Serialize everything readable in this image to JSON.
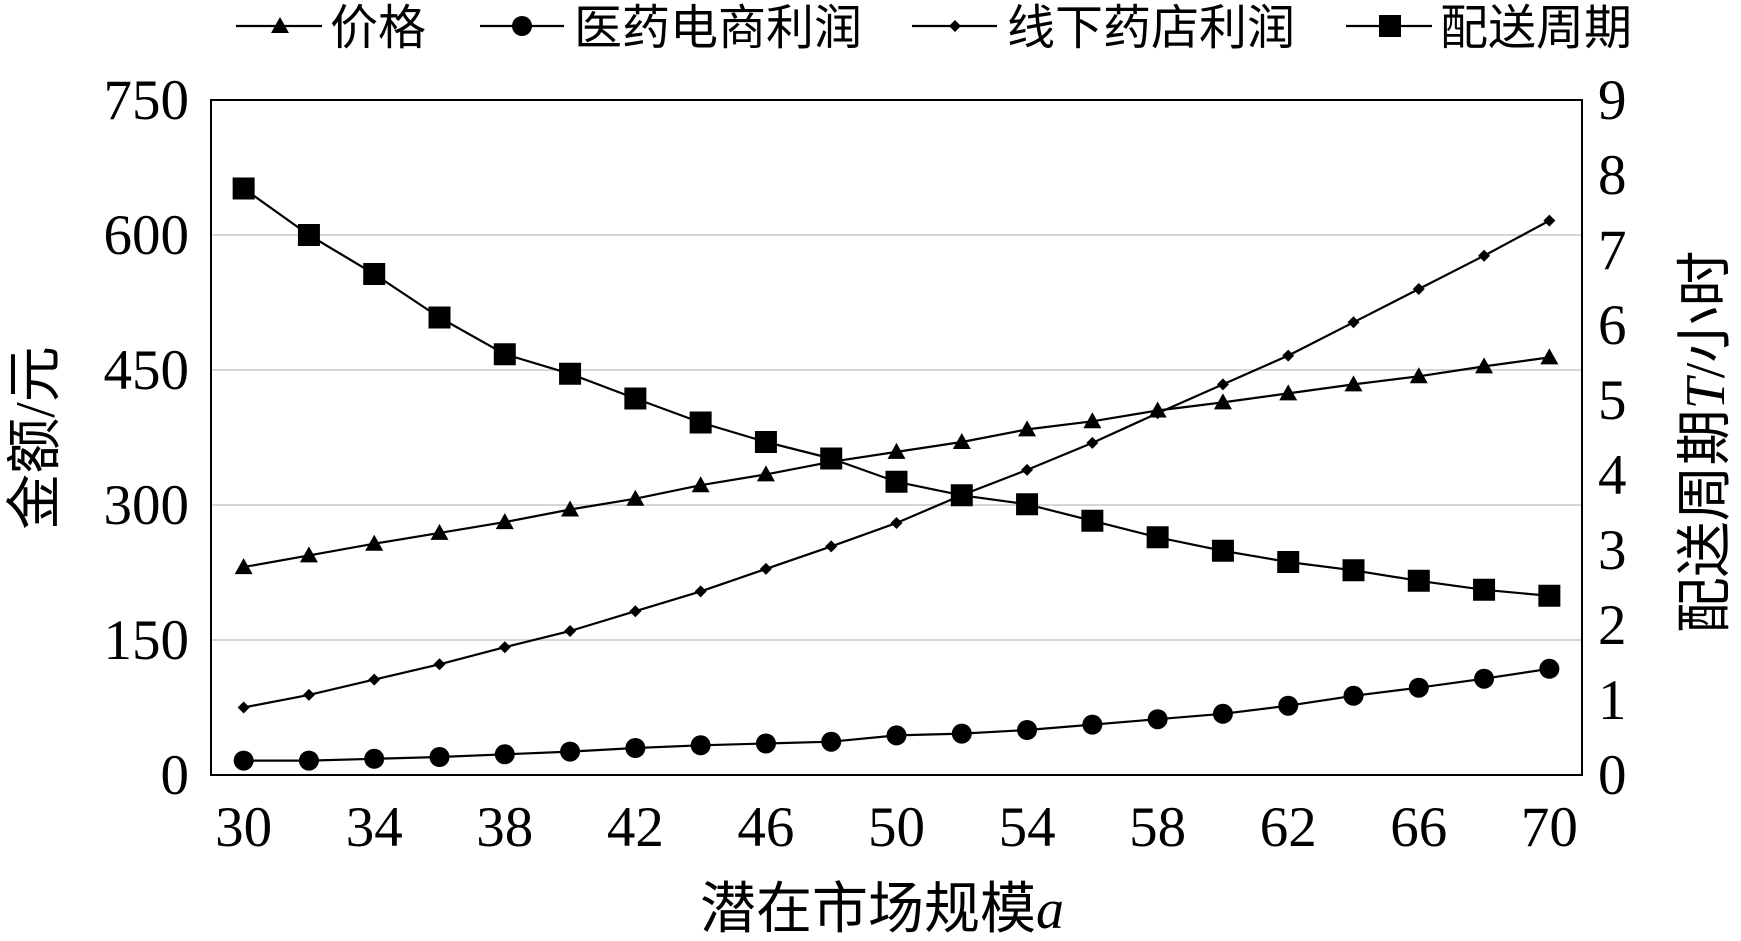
{
  "chart_data": {
    "type": "line",
    "xlabel": "潜在市场规模a",
    "ylabel": "金额/元",
    "y2label": "配送周期T/小时",
    "x": [
      30,
      32,
      34,
      36,
      38,
      40,
      42,
      44,
      46,
      48,
      50,
      52,
      54,
      56,
      58,
      60,
      62,
      64,
      66,
      68,
      70
    ],
    "xlim": [
      29,
      71
    ],
    "xticks": [
      30,
      34,
      38,
      42,
      46,
      50,
      54,
      58,
      62,
      66,
      70
    ],
    "ylim": [
      0,
      750
    ],
    "yticks": [
      0,
      150,
      300,
      450,
      600,
      750
    ],
    "y2lim": [
      0,
      9
    ],
    "y2ticks": [
      0,
      1,
      2,
      3,
      4,
      5,
      6,
      7,
      8,
      9
    ],
    "grid": "horizontal",
    "legend": "top",
    "series": [
      {
        "name": "价格",
        "axis": "left",
        "marker": "triangle",
        "values": [
          231,
          244,
          257,
          269,
          281,
          295,
          307,
          322,
          334,
          348,
          359,
          370,
          384,
          393,
          405,
          414,
          424,
          434,
          443,
          454,
          464
        ]
      },
      {
        "name": "医药电商利润",
        "axis": "left",
        "marker": "circle",
        "values": [
          16,
          16,
          18,
          20,
          23,
          26,
          30,
          33,
          35,
          37,
          44,
          46,
          50,
          56,
          62,
          68,
          77,
          88,
          97,
          107,
          118
        ]
      },
      {
        "name": "线下药店利润",
        "axis": "left",
        "marker": "diamond",
        "values": [
          75,
          89,
          106,
          123,
          142,
          160,
          182,
          204,
          229,
          254,
          280,
          311,
          339,
          369,
          402,
          434,
          466,
          503,
          540,
          577,
          616
        ]
      },
      {
        "name": "配送周期",
        "axis": "right",
        "marker": "square",
        "values": [
          7.82,
          7.2,
          6.68,
          6.1,
          5.61,
          5.35,
          5.02,
          4.7,
          4.44,
          4.22,
          3.91,
          3.73,
          3.61,
          3.39,
          3.17,
          2.99,
          2.84,
          2.73,
          2.59,
          2.47,
          2.39
        ]
      }
    ],
    "colors": {
      "line": "#000000",
      "grid": "#c8c8c8",
      "background": "#ffffff"
    }
  }
}
